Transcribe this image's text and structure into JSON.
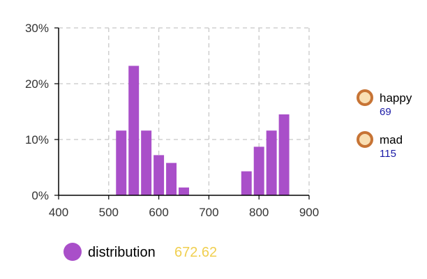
{
  "chart_data": {
    "type": "bar",
    "xlim": [
      400,
      900
    ],
    "ylim": [
      0,
      30
    ],
    "x_ticks": [
      "400",
      "500",
      "600",
      "700",
      "800",
      "900"
    ],
    "y_ticks": [
      "0%",
      "10%",
      "20%",
      "30%"
    ],
    "grid": true,
    "bins": [
      {
        "x": 525,
        "value": 11.6
      },
      {
        "x": 550,
        "value": 23.2
      },
      {
        "x": 575,
        "value": 11.6
      },
      {
        "x": 600,
        "value": 7.2
      },
      {
        "x": 625,
        "value": 5.8
      },
      {
        "x": 650,
        "value": 1.4
      },
      {
        "x": 775,
        "value": 4.3
      },
      {
        "x": 800,
        "value": 8.7
      },
      {
        "x": 825,
        "value": 11.6
      },
      {
        "x": 850,
        "value": 14.5
      }
    ],
    "bar_color": "#a94fc9",
    "markers_legend": [
      {
        "label": "happy",
        "value": "69"
      },
      {
        "label": "mad",
        "value": "115"
      }
    ],
    "marker_fill": "#f9dfb3",
    "marker_stroke": "#c77435",
    "value_color": "#1a1aa6",
    "series_legend": {
      "label": "distribution",
      "value": "672.62",
      "value_color": "#f0cf4f"
    }
  }
}
